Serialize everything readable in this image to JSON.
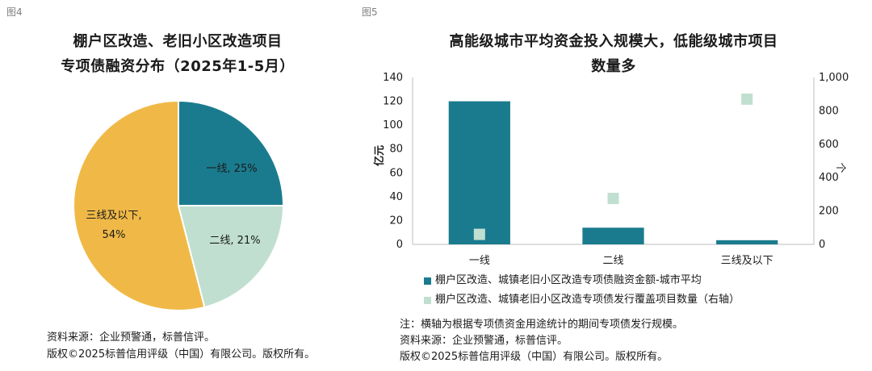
{
  "colors": {
    "teal": "#1a7b8e",
    "mint": "#c0dfd0",
    "gold": "#f0b947",
    "axis": "#bdbdbd"
  },
  "fig4": {
    "label": "图4",
    "title_line1": "棚户区改造、老旧小区改造项目",
    "title_line2": "专项债融资分布（2025年1-5月）",
    "source": "资料来源：企业预警通，标普信评。",
    "copyright": "版权©2025标普信用评级（中国）有限公司。版权所有。"
  },
  "fig5": {
    "label": "图5",
    "title_line1": "高能级城市平均资金投入规模大，低能级城市项目",
    "title_line2": "数量多",
    "legend_bar": "棚户区改造、城镇老旧小区改造专项债融资金额-城市平均",
    "legend_dot": "棚户区改造、城镇老旧小区改造专项债发行覆盖项目数量（右轴）",
    "note": "注：横轴为根据专项债资金用途统计的期间专项债发行规模。",
    "source": "资料来源：企业预警通，标普信评。",
    "copyright": "版权©2025标普信用评级（中国）有限公司。版权所有。"
  },
  "chart_data": [
    {
      "type": "pie",
      "title": "棚户区改造、老旧小区改造项目专项债融资分布（2025年1-5月）",
      "slices": [
        {
          "label": "一线",
          "value": 25,
          "display": "一线, 25%",
          "color": "#1a7b8e"
        },
        {
          "label": "二线",
          "value": 21,
          "display": "二线, 21%",
          "color": "#c0dfd0"
        },
        {
          "label": "三线及以下",
          "value": 54,
          "display_line1": "三线及以下,",
          "display_line2": "54%",
          "color": "#f0b947"
        }
      ]
    },
    {
      "type": "bar",
      "title": "高能级城市平均资金投入规模大，低能级城市项目数量多",
      "categories": [
        "一线",
        "二线",
        "三线及以下"
      ],
      "ylabel": "亿元",
      "y2label": "个",
      "ylim": [
        0,
        140
      ],
      "yticks": [
        0,
        20,
        40,
        60,
        80,
        100,
        120,
        140
      ],
      "y2lim": [
        0,
        1000
      ],
      "y2ticks": [
        "0",
        "200",
        "400",
        "600",
        "800",
        "1,000"
      ],
      "series": [
        {
          "name": "棚户区改造、城镇老旧小区改造专项债融资金额-城市平均",
          "type": "bar",
          "axis": "left",
          "values": [
            120,
            14,
            3.5
          ],
          "color": "#1a7b8e"
        },
        {
          "name": "棚户区改造、城镇老旧小区改造专项债发行覆盖项目数量（右轴）",
          "type": "scatter",
          "axis": "right",
          "values": [
            60,
            275,
            870
          ],
          "color": "#c0dfd0"
        }
      ]
    }
  ]
}
